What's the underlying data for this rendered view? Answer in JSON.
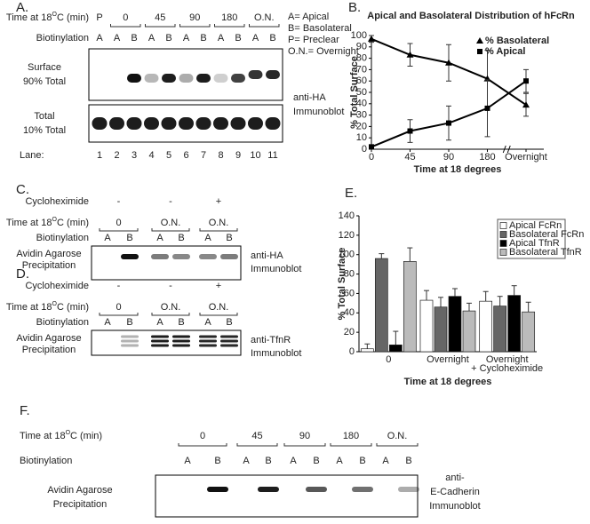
{
  "figure": {
    "A": {
      "letter": "A.",
      "time_label": [
        "Time at 18",
        "O",
        "C (min)"
      ],
      "times": [
        "P",
        "0",
        "45",
        "90",
        "180",
        "O.N."
      ],
      "biotin_label": "Biotinylation",
      "biotin": [
        "A",
        "A",
        "B",
        "A",
        "B",
        "A",
        "B",
        "A",
        "B",
        "A",
        "B"
      ],
      "legend": [
        "A= Apical",
        "B= Basolateral",
        "P= Preclear",
        "O.N.= Overnight"
      ],
      "surface_label": [
        "Surface",
        "90% Total"
      ],
      "total_label": [
        "Total",
        "10% Total"
      ],
      "blot_label": [
        "anti-HA",
        "Immunoblot"
      ],
      "lane_label": "Lane:",
      "lanes": [
        1,
        2,
        3,
        4,
        5,
        6,
        7,
        8,
        9,
        10,
        11
      ]
    },
    "C": {
      "letter": "C.",
      "cyclo_label": "Cycloheximide",
      "cyclo": [
        "-",
        "-",
        "+"
      ],
      "time_label": [
        "Time at 18",
        "O",
        "C (min)"
      ],
      "times": [
        "0",
        "O.N.",
        "O.N."
      ],
      "biotin_label": "Biotinylation",
      "biotin": [
        "A",
        "B",
        "A",
        "B",
        "A",
        "B"
      ],
      "row_label": [
        "Avidin Agarose",
        "Precipitation"
      ],
      "blot_label": [
        "anti-HA",
        "Immunoblot"
      ]
    },
    "D": {
      "letter": "D.",
      "cyclo_label": "Cycloheximide",
      "cyclo": [
        "-",
        "-",
        "+"
      ],
      "time_label": [
        "Time at 18",
        "O",
        "C (min)"
      ],
      "times": [
        "0",
        "O.N.",
        "O.N."
      ],
      "biotin_label": "Biotinylation",
      "biotin": [
        "A",
        "B",
        "A",
        "B",
        "A",
        "B"
      ],
      "row_label": [
        "Avidin Agarose",
        "Precipitation"
      ],
      "blot_label": [
        "anti-TfnR",
        "Immunoblot"
      ]
    },
    "F": {
      "letter": "F.",
      "time_label": [
        "Time at 18",
        "O",
        "C (min)"
      ],
      "times": [
        "0",
        "45",
        "90",
        "180",
        "O.N."
      ],
      "biotin_label": "Biotinylation",
      "biotin": [
        "A",
        "B",
        "A",
        "B",
        "A",
        "B",
        "A",
        "B",
        "A",
        "B"
      ],
      "row_label": [
        "Avidin Agarose",
        "Precipitation"
      ],
      "blot_label": [
        "anti-",
        "E-Cadherin",
        "Immunoblot"
      ]
    }
  },
  "chart_data": [
    {
      "type": "line",
      "panel_label": "B.",
      "title": "Apical and Basolateral Distribution of hFcRn",
      "x_label": "Time at 18 degrees",
      "y_label": "% Total Surface",
      "categories": [
        "0",
        "45",
        "90",
        "180",
        "Overnight"
      ],
      "axis_break": true,
      "ylim": [
        0,
        100
      ],
      "yticks": [
        0,
        10,
        20,
        30,
        40,
        50,
        60,
        70,
        80,
        90,
        100
      ],
      "legend_position": "upper right",
      "series": [
        {
          "name": "% Basolateral",
          "color": "#000000",
          "marker": "triangle",
          "values": [
            97,
            83,
            76,
            62,
            39
          ],
          "errors": [
            3,
            10,
            16,
            25,
            10
          ]
        },
        {
          "name": "% Apical",
          "color": "#000000",
          "marker": "square",
          "values": [
            2,
            16,
            23,
            36,
            60
          ],
          "errors": [
            2,
            10,
            15,
            25,
            10
          ]
        }
      ]
    },
    {
      "type": "bar",
      "panel_label": "E.",
      "x_label": "Time at 18 degrees",
      "y_label": "% Total Surface",
      "categories": [
        "0",
        "Overnight",
        "Overnight\n+ Cycloheximide"
      ],
      "ylim": [
        0,
        140
      ],
      "yticks": [
        0,
        20,
        40,
        60,
        80,
        100,
        120,
        140
      ],
      "legend_position": "upper right",
      "series": [
        {
          "name": "Apical FcRn",
          "color": "#ffffff",
          "values": [
            3,
            53,
            52
          ],
          "errors": [
            5,
            10,
            10
          ]
        },
        {
          "name": "Basolateral FcRn",
          "color": "#666666",
          "values": [
            96,
            46,
            47
          ],
          "errors": [
            5,
            10,
            10
          ]
        },
        {
          "name": "Apical TfnR",
          "color": "#000000",
          "values": [
            7,
            57,
            58
          ],
          "errors": [
            14,
            8,
            10
          ]
        },
        {
          "name": "Basolateral TfnR",
          "color": "#bbbbbb",
          "values": [
            93,
            42,
            41
          ],
          "errors": [
            14,
            8,
            10
          ]
        }
      ]
    }
  ]
}
